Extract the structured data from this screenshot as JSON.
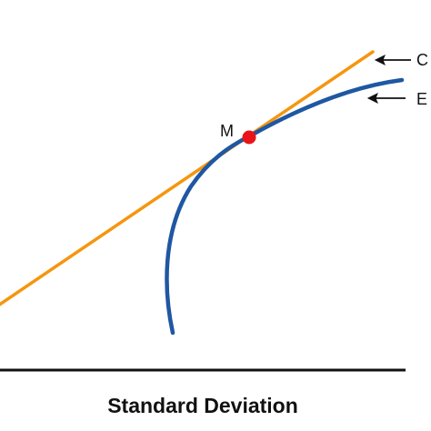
{
  "diagram": {
    "x_axis_label": "Standard Deviation",
    "point_label": "M",
    "line_label": "C",
    "curve_label": "E",
    "colors": {
      "line": "#F5960F",
      "curve": "#1F57A2",
      "point": "#E8141A",
      "axis": "#111111",
      "text": "#111111"
    }
  }
}
